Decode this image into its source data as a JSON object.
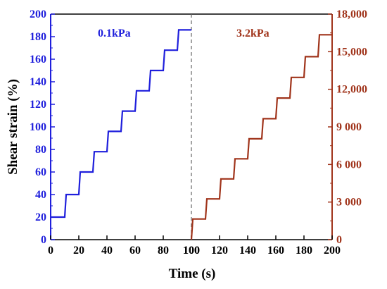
{
  "colors": {
    "left_series": "#1f1fdc",
    "right_series": "#a0341b",
    "frame": "#000000",
    "divider": "#666666"
  },
  "chart_data": {
    "type": "line",
    "xlabel": "Time (s)",
    "ylabel_left": "Shear strain (%)",
    "ylabel_right": "",
    "grid": false,
    "left_panel": {
      "x_ticks": [
        "0",
        "20",
        "40",
        "60",
        "80",
        "100"
      ],
      "xlim": [
        0,
        100
      ]
    },
    "right_panel": {
      "x_ticks": [
        "100",
        "120",
        "140",
        "160",
        "180",
        "200"
      ],
      "xlim": [
        100,
        200
      ]
    },
    "y_left": {
      "ticks": [
        "0",
        "20",
        "40",
        "60",
        "80",
        "100",
        "120",
        "140",
        "160",
        "180",
        "200"
      ],
      "ylim": [
        0,
        200
      ]
    },
    "y_right": {
      "ticks": [
        "0",
        "3 000",
        "6 000",
        "9 000",
        "12,000",
        "15,000",
        "18,000"
      ],
      "ylim": [
        0,
        18000
      ]
    },
    "series": [
      {
        "name": "0.1kPa",
        "axis": "left",
        "x": [
          0,
          1,
          10,
          11,
          20,
          21,
          30,
          31,
          40,
          41,
          50,
          51,
          60,
          61,
          70,
          71,
          80,
          81,
          90,
          91,
          100
        ],
        "y": [
          20,
          20,
          20,
          40,
          40,
          60,
          60,
          78,
          78,
          96,
          96,
          114,
          114,
          132,
          132,
          150,
          150,
          168,
          168,
          186,
          186
        ]
      },
      {
        "name": "3.2kPa",
        "axis": "right",
        "x": [
          100,
          101,
          110,
          111,
          120,
          121,
          130,
          131,
          140,
          141,
          150,
          151,
          160,
          161,
          170,
          171,
          180,
          181,
          190,
          191,
          200
        ],
        "y": [
          0,
          1650,
          1650,
          3250,
          3250,
          4850,
          4850,
          6450,
          6450,
          8050,
          8050,
          9650,
          9650,
          11300,
          11300,
          12950,
          12950,
          14600,
          14600,
          16350,
          16350
        ]
      }
    ]
  }
}
